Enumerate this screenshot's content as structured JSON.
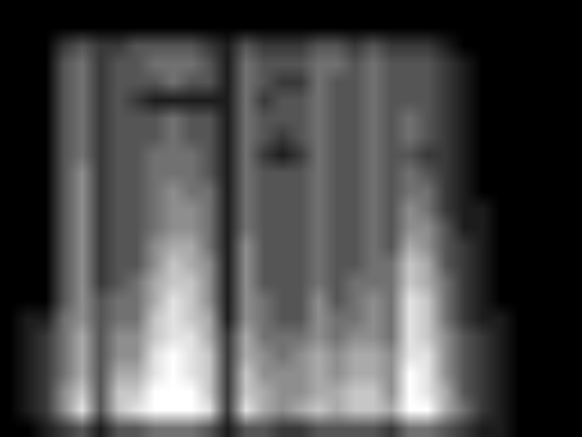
{
  "chart_data": {
    "type": "heatmap",
    "color": "gray",
    "tick_labels": false,
    "zlim": [
      0,
      9
    ],
    "cells": [
      [
        0,
        0,
        0,
        0,
        0,
        0,
        0,
        0,
        0,
        0,
        0,
        0,
        0,
        0,
        0,
        0,
        0,
        0,
        0,
        0,
        0,
        0,
        0,
        0,
        0,
        0,
        0,
        0,
        0,
        0,
        0,
        0
      ],
      [
        0,
        0,
        0,
        0,
        0,
        0,
        0,
        0,
        0,
        0,
        0,
        0,
        0,
        0,
        0,
        0,
        0,
        0,
        0,
        0,
        0,
        0,
        0,
        0,
        0,
        0,
        0,
        0,
        0,
        0,
        0,
        0
      ],
      [
        0,
        0,
        0,
        2,
        3,
        2,
        2,
        3,
        3,
        3,
        3,
        2,
        1,
        3,
        2,
        2,
        2,
        3,
        3,
        2,
        3,
        2,
        2,
        2,
        1,
        0,
        0,
        0,
        0,
        0,
        0,
        0
      ],
      [
        0,
        0,
        0,
        3,
        4,
        2,
        3,
        3,
        4,
        4,
        4,
        3,
        1,
        4,
        3,
        3,
        3,
        4,
        4,
        3,
        4,
        3,
        3,
        3,
        2,
        1,
        0,
        0,
        0,
        0,
        0,
        0
      ],
      [
        0,
        0,
        0,
        3,
        4,
        2,
        3,
        3,
        3,
        4,
        3,
        3,
        1,
        4,
        3,
        2,
        2,
        4,
        3,
        3,
        4,
        3,
        3,
        3,
        2,
        1,
        0,
        0,
        0,
        0,
        0,
        0
      ],
      [
        0,
        0,
        0,
        3,
        4,
        2,
        3,
        2,
        1,
        1,
        1,
        1,
        1,
        4,
        2,
        3,
        3,
        4,
        3,
        3,
        4,
        3,
        3,
        3,
        2,
        1,
        0,
        0,
        0,
        0,
        0,
        0
      ],
      [
        0,
        0,
        0,
        3,
        4,
        2,
        3,
        3,
        3,
        4,
        3,
        3,
        1,
        4,
        3,
        3,
        3,
        4,
        3,
        3,
        4,
        3,
        4,
        3,
        2,
        1,
        0,
        0,
        0,
        0,
        0,
        0
      ],
      [
        0,
        0,
        0,
        3,
        4,
        2,
        3,
        3,
        3,
        4,
        3,
        3,
        1,
        4,
        3,
        2,
        3,
        4,
        3,
        3,
        4,
        3,
        4,
        3,
        2,
        1,
        0,
        0,
        0,
        0,
        0,
        0
      ],
      [
        0,
        0,
        0,
        3,
        4,
        2,
        3,
        3,
        4,
        4,
        4,
        3,
        1,
        4,
        2,
        1,
        2,
        4,
        3,
        3,
        4,
        3,
        3,
        2,
        2,
        1,
        0,
        0,
        0,
        0,
        0,
        0
      ],
      [
        0,
        0,
        0,
        3,
        5,
        2,
        3,
        3,
        4,
        4,
        4,
        3,
        1,
        4,
        3,
        3,
        3,
        4,
        3,
        3,
        4,
        3,
        4,
        3,
        2,
        1,
        0,
        0,
        0,
        0,
        0,
        0
      ],
      [
        0,
        0,
        0,
        3,
        5,
        2,
        3,
        3,
        4,
        5,
        4,
        4,
        1,
        4,
        3,
        3,
        3,
        4,
        3,
        3,
        4,
        3,
        4,
        4,
        2,
        1,
        0,
        0,
        0,
        0,
        0,
        0
      ],
      [
        0,
        0,
        0,
        3,
        5,
        2,
        3,
        3,
        4,
        5,
        5,
        4,
        1,
        4,
        3,
        3,
        3,
        4,
        3,
        3,
        4,
        3,
        5,
        4,
        2,
        1,
        1,
        0,
        0,
        0,
        0,
        0
      ],
      [
        0,
        0,
        0,
        3,
        5,
        2,
        3,
        3,
        4,
        5,
        5,
        4,
        1,
        4,
        3,
        3,
        3,
        4,
        3,
        3,
        4,
        3,
        5,
        5,
        3,
        1,
        1,
        0,
        0,
        0,
        0,
        0
      ],
      [
        0,
        0,
        0,
        3,
        5,
        2,
        3,
        3,
        5,
        6,
        6,
        4,
        1,
        5,
        3,
        3,
        3,
        4,
        3,
        3,
        4,
        3,
        6,
        5,
        3,
        2,
        1,
        0,
        0,
        0,
        0,
        0
      ],
      [
        0,
        0,
        0,
        3,
        5,
        2,
        3,
        3,
        5,
        7,
        6,
        5,
        1,
        5,
        3,
        3,
        3,
        4,
        3,
        3,
        4,
        4,
        7,
        6,
        3,
        2,
        1,
        0,
        0,
        0,
        0,
        0
      ],
      [
        0,
        0,
        0,
        3,
        5,
        2,
        3,
        4,
        6,
        7,
        7,
        5,
        1,
        5,
        3,
        3,
        3,
        4,
        3,
        4,
        4,
        4,
        7,
        6,
        4,
        2,
        1,
        0,
        0,
        0,
        0,
        0
      ],
      [
        0,
        0,
        0,
        3,
        5,
        3,
        4,
        4,
        6,
        8,
        7,
        5,
        1,
        5,
        4,
        3,
        3,
        5,
        3,
        4,
        5,
        4,
        8,
        7,
        4,
        2,
        1,
        0,
        0,
        0,
        0,
        0
      ],
      [
        0,
        1,
        1,
        4,
        5,
        3,
        4,
        4,
        7,
        8,
        7,
        6,
        1,
        5,
        4,
        3,
        3,
        5,
        4,
        4,
        5,
        4,
        8,
        7,
        4,
        2,
        1,
        1,
        0,
        0,
        0,
        0
      ],
      [
        0,
        1,
        2,
        4,
        6,
        3,
        5,
        5,
        7,
        8,
        8,
        6,
        2,
        6,
        4,
        4,
        4,
        5,
        4,
        5,
        5,
        4,
        8,
        7,
        5,
        3,
        2,
        1,
        0,
        0,
        0,
        0
      ],
      [
        0,
        1,
        2,
        4,
        6,
        3,
        5,
        5,
        8,
        9,
        8,
        7,
        2,
        6,
        5,
        4,
        5,
        6,
        5,
        6,
        6,
        5,
        8,
        8,
        5,
        3,
        2,
        1,
        0,
        0,
        0,
        0
      ],
      [
        0,
        1,
        2,
        4,
        6,
        3,
        6,
        6,
        8,
        9,
        8,
        7,
        2,
        7,
        5,
        5,
        5,
        6,
        5,
        6,
        6,
        5,
        9,
        8,
        5,
        3,
        2,
        1,
        0,
        0,
        0,
        0
      ],
      [
        0,
        1,
        2,
        5,
        7,
        3,
        7,
        7,
        9,
        9,
        9,
        7,
        2,
        7,
        6,
        5,
        5,
        6,
        6,
        7,
        7,
        5,
        9,
        8,
        6,
        3,
        2,
        1,
        0,
        0,
        0,
        0
      ],
      [
        0,
        1,
        2,
        5,
        8,
        3,
        7,
        8,
        9,
        9,
        9,
        8,
        2,
        8,
        6,
        5,
        6,
        7,
        6,
        7,
        7,
        6,
        9,
        9,
        6,
        4,
        2,
        1,
        0,
        0,
        0,
        0
      ],
      [
        0,
        0,
        1,
        2,
        3,
        1,
        3,
        3,
        4,
        4,
        4,
        3,
        1,
        3,
        3,
        2,
        2,
        3,
        3,
        3,
        3,
        2,
        4,
        4,
        3,
        2,
        1,
        1,
        0,
        0,
        0,
        0
      ]
    ]
  }
}
